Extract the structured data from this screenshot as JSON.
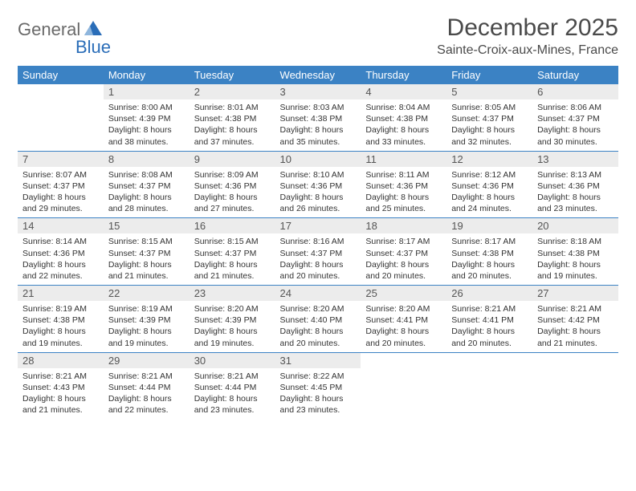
{
  "logo": {
    "text1": "General",
    "text2": "Blue"
  },
  "title": "December 2025",
  "location": "Sainte-Croix-aux-Mines, France",
  "colors": {
    "header_bg": "#3b82c4",
    "header_fg": "#ffffff",
    "daynum_bg": "#ececec",
    "rule": "#3b82c4",
    "logo_gray": "#6a6a6a",
    "logo_blue": "#2a6db8"
  },
  "weekdays": [
    "Sunday",
    "Monday",
    "Tuesday",
    "Wednesday",
    "Thursday",
    "Friday",
    "Saturday"
  ],
  "cells": [
    {
      "blank": true
    },
    {
      "n": "1",
      "sr": "8:00 AM",
      "ss": "4:39 PM",
      "dl": "8 hours and 38 minutes."
    },
    {
      "n": "2",
      "sr": "8:01 AM",
      "ss": "4:38 PM",
      "dl": "8 hours and 37 minutes."
    },
    {
      "n": "3",
      "sr": "8:03 AM",
      "ss": "4:38 PM",
      "dl": "8 hours and 35 minutes."
    },
    {
      "n": "4",
      "sr": "8:04 AM",
      "ss": "4:38 PM",
      "dl": "8 hours and 33 minutes."
    },
    {
      "n": "5",
      "sr": "8:05 AM",
      "ss": "4:37 PM",
      "dl": "8 hours and 32 minutes."
    },
    {
      "n": "6",
      "sr": "8:06 AM",
      "ss": "4:37 PM",
      "dl": "8 hours and 30 minutes."
    },
    {
      "n": "7",
      "sr": "8:07 AM",
      "ss": "4:37 PM",
      "dl": "8 hours and 29 minutes."
    },
    {
      "n": "8",
      "sr": "8:08 AM",
      "ss": "4:37 PM",
      "dl": "8 hours and 28 minutes."
    },
    {
      "n": "9",
      "sr": "8:09 AM",
      "ss": "4:36 PM",
      "dl": "8 hours and 27 minutes."
    },
    {
      "n": "10",
      "sr": "8:10 AM",
      "ss": "4:36 PM",
      "dl": "8 hours and 26 minutes."
    },
    {
      "n": "11",
      "sr": "8:11 AM",
      "ss": "4:36 PM",
      "dl": "8 hours and 25 minutes."
    },
    {
      "n": "12",
      "sr": "8:12 AM",
      "ss": "4:36 PM",
      "dl": "8 hours and 24 minutes."
    },
    {
      "n": "13",
      "sr": "8:13 AM",
      "ss": "4:36 PM",
      "dl": "8 hours and 23 minutes."
    },
    {
      "n": "14",
      "sr": "8:14 AM",
      "ss": "4:36 PM",
      "dl": "8 hours and 22 minutes."
    },
    {
      "n": "15",
      "sr": "8:15 AM",
      "ss": "4:37 PM",
      "dl": "8 hours and 21 minutes."
    },
    {
      "n": "16",
      "sr": "8:15 AM",
      "ss": "4:37 PM",
      "dl": "8 hours and 21 minutes."
    },
    {
      "n": "17",
      "sr": "8:16 AM",
      "ss": "4:37 PM",
      "dl": "8 hours and 20 minutes."
    },
    {
      "n": "18",
      "sr": "8:17 AM",
      "ss": "4:37 PM",
      "dl": "8 hours and 20 minutes."
    },
    {
      "n": "19",
      "sr": "8:17 AM",
      "ss": "4:38 PM",
      "dl": "8 hours and 20 minutes."
    },
    {
      "n": "20",
      "sr": "8:18 AM",
      "ss": "4:38 PM",
      "dl": "8 hours and 19 minutes."
    },
    {
      "n": "21",
      "sr": "8:19 AM",
      "ss": "4:38 PM",
      "dl": "8 hours and 19 minutes."
    },
    {
      "n": "22",
      "sr": "8:19 AM",
      "ss": "4:39 PM",
      "dl": "8 hours and 19 minutes."
    },
    {
      "n": "23",
      "sr": "8:20 AM",
      "ss": "4:39 PM",
      "dl": "8 hours and 19 minutes."
    },
    {
      "n": "24",
      "sr": "8:20 AM",
      "ss": "4:40 PM",
      "dl": "8 hours and 20 minutes."
    },
    {
      "n": "25",
      "sr": "8:20 AM",
      "ss": "4:41 PM",
      "dl": "8 hours and 20 minutes."
    },
    {
      "n": "26",
      "sr": "8:21 AM",
      "ss": "4:41 PM",
      "dl": "8 hours and 20 minutes."
    },
    {
      "n": "27",
      "sr": "8:21 AM",
      "ss": "4:42 PM",
      "dl": "8 hours and 21 minutes."
    },
    {
      "n": "28",
      "sr": "8:21 AM",
      "ss": "4:43 PM",
      "dl": "8 hours and 21 minutes."
    },
    {
      "n": "29",
      "sr": "8:21 AM",
      "ss": "4:44 PM",
      "dl": "8 hours and 22 minutes."
    },
    {
      "n": "30",
      "sr": "8:21 AM",
      "ss": "4:44 PM",
      "dl": "8 hours and 23 minutes."
    },
    {
      "n": "31",
      "sr": "8:22 AM",
      "ss": "4:45 PM",
      "dl": "8 hours and 23 minutes."
    },
    {
      "blank": true
    },
    {
      "blank": true
    },
    {
      "blank": true
    }
  ],
  "labels": {
    "sunrise": "Sunrise:",
    "sunset": "Sunset:",
    "daylight": "Daylight:"
  }
}
